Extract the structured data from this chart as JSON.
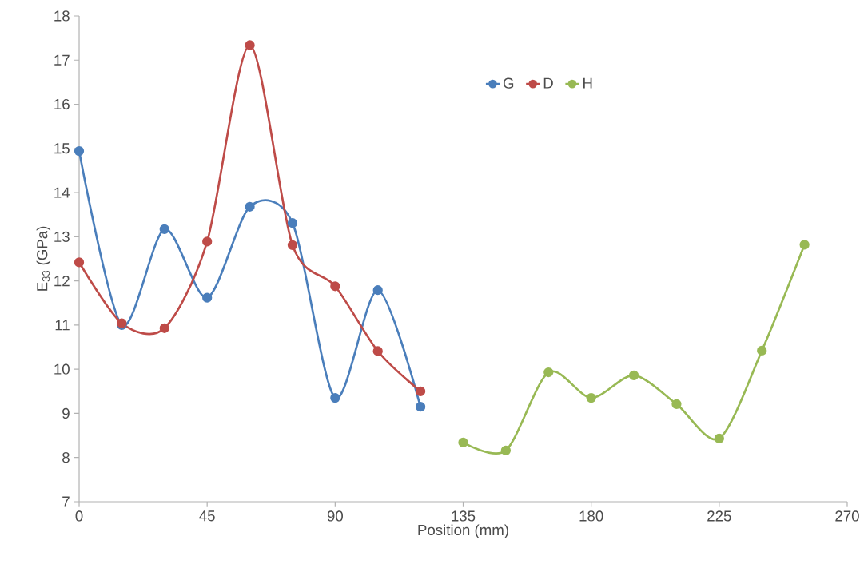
{
  "chart_data": {
    "type": "line",
    "xlabel": "Position (mm)",
    "ylabel": "E$_{33}$ (GPa)",
    "xlim": [
      0,
      270
    ],
    "xticks": [
      0,
      45,
      90,
      135,
      180,
      225,
      270
    ],
    "ylim": [
      7,
      18
    ],
    "yticks": [
      7,
      8,
      9,
      10,
      11,
      12,
      13,
      14,
      15,
      16,
      17,
      18
    ],
    "grid": false,
    "legend": "top",
    "marker": "circle",
    "line_style": "solid",
    "series": [
      {
        "name": "G",
        "color": "#4a7ebb",
        "x": [
          0,
          15,
          30,
          45,
          60,
          75,
          90,
          105,
          120
        ],
        "values": [
          14.94,
          11.0,
          13.17,
          11.62,
          13.68,
          13.31,
          9.35,
          11.79,
          9.15
        ]
      },
      {
        "name": "D",
        "color": "#be4b48",
        "x": [
          0,
          15,
          30,
          45,
          60,
          75,
          90,
          105,
          120
        ],
        "values": [
          12.42,
          11.04,
          10.93,
          12.89,
          17.34,
          12.81,
          11.88,
          10.41,
          9.5
        ]
      },
      {
        "name": "H",
        "color": "#98b954",
        "x": [
          135,
          150,
          165,
          180,
          195,
          210,
          225,
          240,
          255
        ],
        "values": [
          8.34,
          8.16,
          9.93,
          9.35,
          9.86,
          9.21,
          8.43,
          10.42,
          12.82
        ]
      }
    ]
  }
}
